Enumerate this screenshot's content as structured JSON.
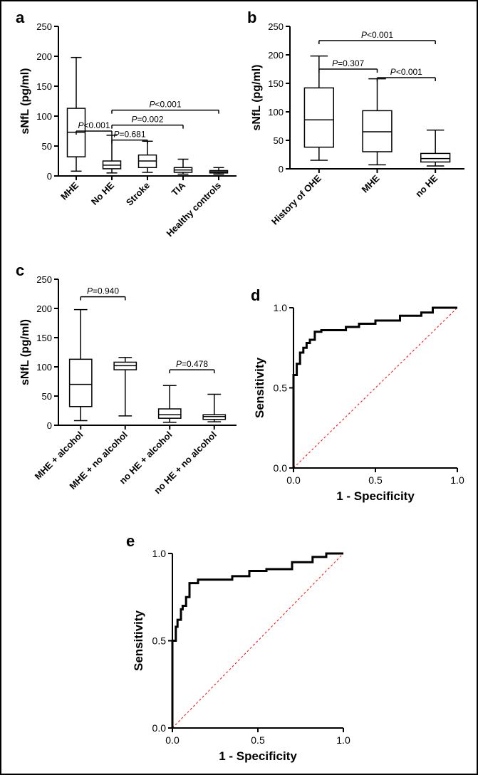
{
  "figure": {
    "border_color": "#000000",
    "background": "#ffffff"
  },
  "panel_a": {
    "type": "boxplot",
    "label": "a",
    "ylabel": "sNfL (pg/ml)",
    "label_fontsize": 20,
    "axis_fontsize": 16,
    "tick_fontsize": 13,
    "ylim": [
      0,
      250
    ],
    "ytick_step": 50,
    "categories": [
      "MHE",
      "No HE",
      "Stroke",
      "TIA",
      "Healthy controls"
    ],
    "boxes": [
      {
        "min": 8,
        "q1": 32,
        "median": 73,
        "q3": 113,
        "max": 198
      },
      {
        "min": 5,
        "q1": 12,
        "median": 18,
        "q3": 25,
        "max": 68
      },
      {
        "min": 6,
        "q1": 14,
        "median": 25,
        "q3": 35,
        "max": 58
      },
      {
        "min": 3,
        "q1": 6,
        "median": 10,
        "q3": 14,
        "max": 28
      },
      {
        "min": 3,
        "q1": 5,
        "median": 7,
        "q3": 9,
        "max": 14
      }
    ],
    "pvalues": [
      {
        "text": "P<0.001",
        "from": 0,
        "to": 1,
        "y": 75
      },
      {
        "text": "P=0.681",
        "from": 1,
        "to": 2,
        "y": 60
      },
      {
        "text": "P=0.002",
        "from": 1,
        "to": 3,
        "y": 85
      },
      {
        "text": "P<0.001",
        "from": 1,
        "to": 4,
        "y": 110
      }
    ],
    "box_color": "#000000",
    "box_fill": "#ffffff"
  },
  "panel_b": {
    "type": "boxplot",
    "label": "b",
    "ylabel": "sNfL (pg/ml)",
    "ylim": [
      0,
      250
    ],
    "ytick_step": 50,
    "categories": [
      "History of OHE",
      "MHE",
      "no HE"
    ],
    "boxes": [
      {
        "min": 15,
        "q1": 38,
        "median": 86,
        "q3": 142,
        "max": 198
      },
      {
        "min": 7,
        "q1": 30,
        "median": 65,
        "q3": 102,
        "max": 158
      },
      {
        "min": 5,
        "q1": 12,
        "median": 18,
        "q3": 27,
        "max": 68
      }
    ],
    "pvalues": [
      {
        "text": "P=0.307",
        "from": 0,
        "to": 1,
        "y": 175
      },
      {
        "text": "P<0.001",
        "from": 1,
        "to": 2,
        "y": 160
      },
      {
        "text": "P<0.001",
        "from": 0,
        "to": 2,
        "y": 225
      }
    ]
  },
  "panel_c": {
    "type": "boxplot",
    "label": "c",
    "ylabel": "sNfL (pg/ml)",
    "ylim": [
      0,
      250
    ],
    "ytick_step": 50,
    "categories": [
      "MHE + alcohol",
      "MHE + no alcohol",
      "no HE + alcohol",
      "no HE + no alcohol"
    ],
    "boxes": [
      {
        "min": 8,
        "q1": 32,
        "median": 70,
        "q3": 113,
        "max": 198
      },
      {
        "min": 16,
        "q1": 95,
        "median": 102,
        "q3": 108,
        "max": 116
      },
      {
        "min": 5,
        "q1": 12,
        "median": 18,
        "q3": 28,
        "max": 68
      },
      {
        "min": 6,
        "q1": 10,
        "median": 15,
        "q3": 18,
        "max": 53
      }
    ],
    "pvalues": [
      {
        "text": "P=0.940",
        "from": 0,
        "to": 1,
        "y": 220
      },
      {
        "text": "P=0.478",
        "from": 2,
        "to": 3,
        "y": 95
      }
    ]
  },
  "panel_d": {
    "type": "roc",
    "label": "d",
    "xlabel": "1 - Specificity",
    "ylabel": "Sensitivity",
    "xlim": [
      0,
      1
    ],
    "ylim": [
      0,
      1
    ],
    "tick_step": 0.5,
    "diag_color": "#ff0000",
    "roc_color": "#000000",
    "roc_points": [
      [
        0.0,
        0.0
      ],
      [
        0.0,
        0.55
      ],
      [
        0.02,
        0.58
      ],
      [
        0.02,
        0.62
      ],
      [
        0.04,
        0.65
      ],
      [
        0.04,
        0.7
      ],
      [
        0.06,
        0.72
      ],
      [
        0.08,
        0.75
      ],
      [
        0.1,
        0.78
      ],
      [
        0.13,
        0.8
      ],
      [
        0.17,
        0.85
      ],
      [
        0.2,
        0.86
      ],
      [
        0.32,
        0.86
      ],
      [
        0.4,
        0.88
      ],
      [
        0.5,
        0.9
      ],
      [
        0.65,
        0.92
      ],
      [
        0.78,
        0.95
      ],
      [
        0.85,
        0.97
      ],
      [
        0.88,
        1.0
      ],
      [
        1.0,
        1.0
      ]
    ]
  },
  "panel_e": {
    "type": "roc",
    "label": "e",
    "xlabel": "1 - Specificity",
    "ylabel": "Sensitivity",
    "xlim": [
      0,
      1
    ],
    "ylim": [
      0,
      1
    ],
    "tick_step": 0.5,
    "diag_color": "#ff0000",
    "roc_color": "#000000",
    "roc_points": [
      [
        0.0,
        0.0
      ],
      [
        0.0,
        0.42
      ],
      [
        0.02,
        0.5
      ],
      [
        0.03,
        0.58
      ],
      [
        0.05,
        0.62
      ],
      [
        0.06,
        0.68
      ],
      [
        0.08,
        0.7
      ],
      [
        0.1,
        0.75
      ],
      [
        0.15,
        0.83
      ],
      [
        0.2,
        0.85
      ],
      [
        0.35,
        0.85
      ],
      [
        0.45,
        0.87
      ],
      [
        0.55,
        0.9
      ],
      [
        0.7,
        0.91
      ],
      [
        0.82,
        0.95
      ],
      [
        0.9,
        0.98
      ],
      [
        0.95,
        1.0
      ],
      [
        1.0,
        1.0
      ]
    ]
  }
}
